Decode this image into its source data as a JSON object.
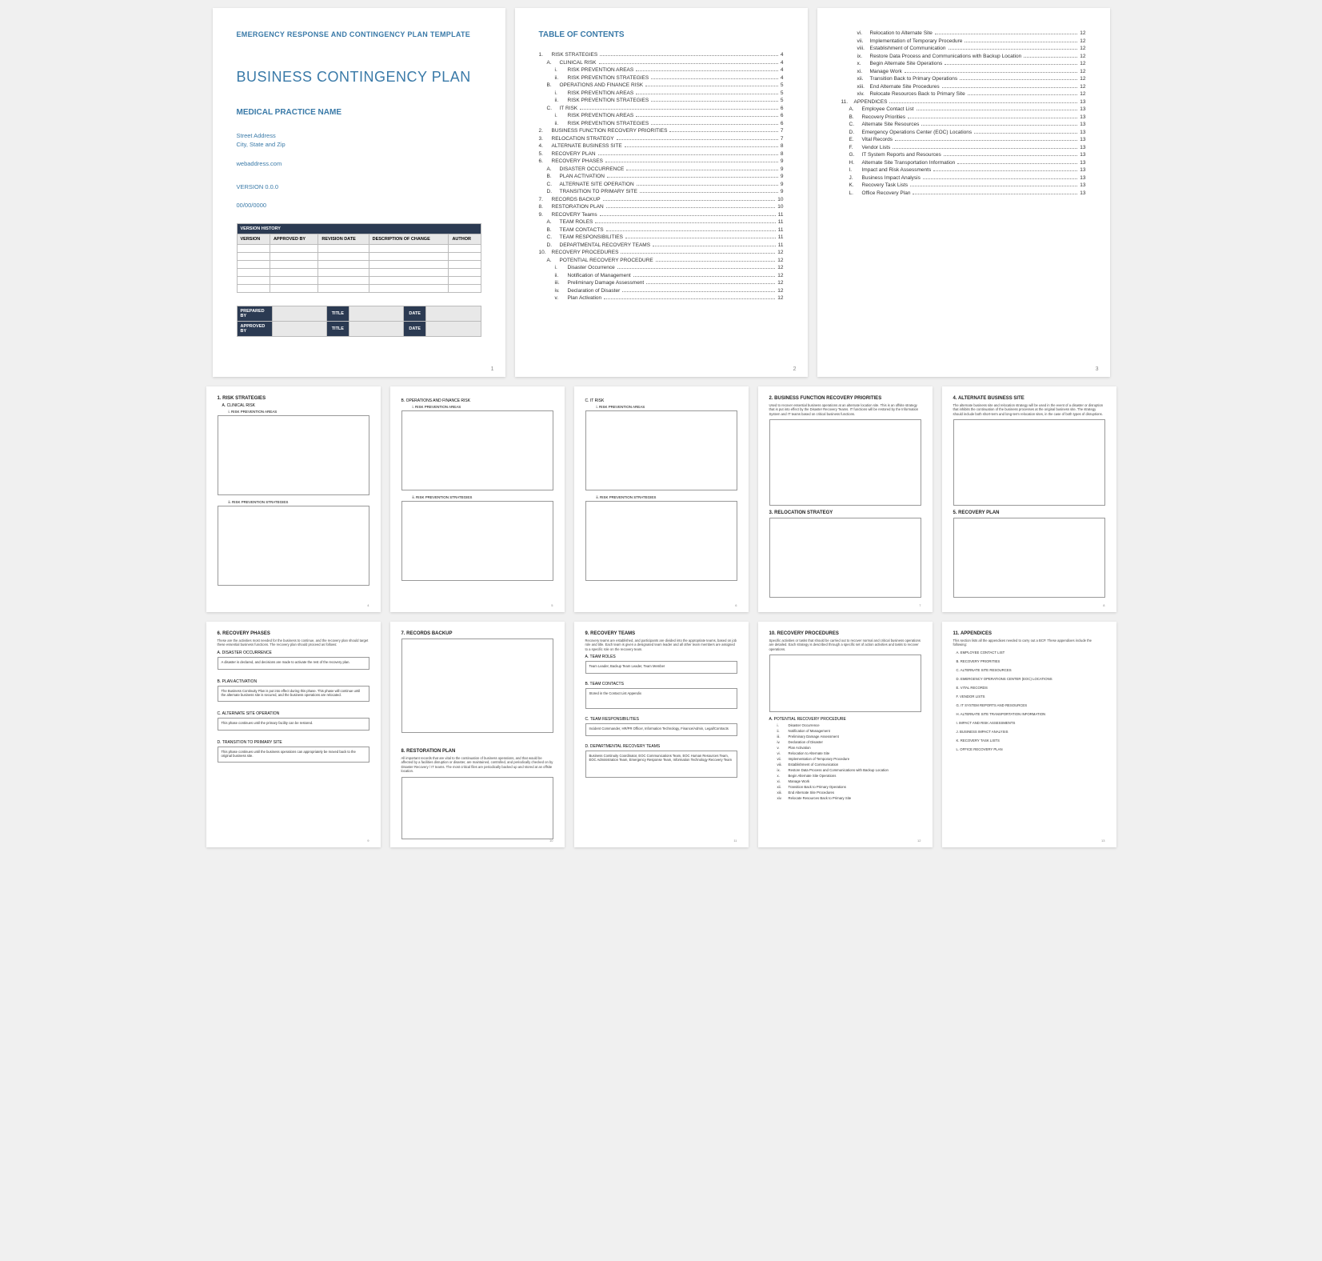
{
  "page1": {
    "supertitle": "EMERGENCY RESPONSE AND CONTINGENCY PLAN TEMPLATE",
    "title": "BUSINESS CONTINGENCY PLAN",
    "subtitle": "MEDICAL PRACTICE NAME",
    "address_line1": "Street Address",
    "address_line2": "City, State and Zip",
    "web": "webaddress.com",
    "version": "VERSION 0.0.0",
    "date": "00/00/0000",
    "vh_title": "VERSION HISTORY",
    "vh_cols": [
      "VERSION",
      "APPROVED BY",
      "REVISION DATE",
      "DESCRIPTION OF CHANGE",
      "AUTHOR"
    ],
    "sig": {
      "prepared": "PREPARED BY",
      "approved": "APPROVED BY",
      "title": "TITLE",
      "date": "DATE"
    }
  },
  "toc_title": "TABLE OF CONTENTS",
  "toc_a": [
    {
      "n": "1.",
      "t": "RISK STRATEGIES",
      "p": "4",
      "i": 0
    },
    {
      "n": "A.",
      "t": "CLINICAL RISK",
      "p": "4",
      "i": 1
    },
    {
      "n": "i.",
      "t": "RISK PREVENTION AREAS",
      "p": "4",
      "i": 2
    },
    {
      "n": "ii.",
      "t": "RISK PREVENTION STRATEGIES",
      "p": "4",
      "i": 2
    },
    {
      "n": "B.",
      "t": "OPERATIONS AND FINANCE RISK",
      "p": "5",
      "i": 1
    },
    {
      "n": "i.",
      "t": "RISK PREVENTION AREAS",
      "p": "5",
      "i": 2
    },
    {
      "n": "ii.",
      "t": "RISK PREVENTION STRATEGIES",
      "p": "5",
      "i": 2
    },
    {
      "n": "C.",
      "t": "IT RISK",
      "p": "6",
      "i": 1
    },
    {
      "n": "i.",
      "t": "RISK PREVENTION AREAS",
      "p": "6",
      "i": 2
    },
    {
      "n": "ii.",
      "t": "RISK PREVENTION STRATEGIES",
      "p": "6",
      "i": 2
    },
    {
      "n": "2.",
      "t": "BUSINESS FUNCTION RECOVERY PRIORITIES",
      "p": "7",
      "i": 0
    },
    {
      "n": "3.",
      "t": "RELOCATION STRATEGY",
      "p": "7",
      "i": 0
    },
    {
      "n": "4.",
      "t": "ALTERNATE BUSINESS SITE",
      "p": "8",
      "i": 0
    },
    {
      "n": "5.",
      "t": "RECOVERY PLAN",
      "p": "8",
      "i": 0
    },
    {
      "n": "6.",
      "t": "RECOVERY PHASES",
      "p": "9",
      "i": 0
    },
    {
      "n": "A.",
      "t": "DISASTER OCCURRENCE",
      "p": "9",
      "i": 1
    },
    {
      "n": "B.",
      "t": "PLAN ACTIVATION",
      "p": "9",
      "i": 1
    },
    {
      "n": "C.",
      "t": "ALTERNATE SITE OPERATION",
      "p": "9",
      "i": 1
    },
    {
      "n": "D.",
      "t": "TRANSITION TO PRIMARY SITE",
      "p": "9",
      "i": 1
    },
    {
      "n": "7.",
      "t": "RECORDS BACKUP",
      "p": "10",
      "i": 0
    },
    {
      "n": "8.",
      "t": "RESTORATION PLAN",
      "p": "10",
      "i": 0
    },
    {
      "n": "9.",
      "t": "RECOVERY Teams",
      "p": "11",
      "i": 0
    },
    {
      "n": "A.",
      "t": "TEAM ROLES",
      "p": "11",
      "i": 1
    },
    {
      "n": "B.",
      "t": "TEAM CONTACTS",
      "p": "11",
      "i": 1
    },
    {
      "n": "C.",
      "t": "TEAM RESPONSIBILITIES",
      "p": "11",
      "i": 1
    },
    {
      "n": "D.",
      "t": "DEPARTMENTAL RECOVERY TEAMS",
      "p": "11",
      "i": 1
    },
    {
      "n": "10.",
      "t": "RECOVERY PROCEDURES",
      "p": "12",
      "i": 0
    },
    {
      "n": "A.",
      "t": "POTENTIAL RECOVERY PROCEDURE",
      "p": "12",
      "i": 1
    },
    {
      "n": "i.",
      "t": "Disaster Occurrence",
      "p": "12",
      "i": 2
    },
    {
      "n": "ii.",
      "t": "Notification of Management",
      "p": "12",
      "i": 2
    },
    {
      "n": "iii.",
      "t": "Preliminary Damage Assessment",
      "p": "12",
      "i": 2
    },
    {
      "n": "iv.",
      "t": "Declaration of Disaster",
      "p": "12",
      "i": 2
    },
    {
      "n": "v.",
      "t": "Plan Activation",
      "p": "12",
      "i": 2
    }
  ],
  "toc_b": [
    {
      "n": "vi.",
      "t": "Relocation to Alternate Site",
      "p": "12",
      "i": 2
    },
    {
      "n": "vii.",
      "t": "Implementation of Temporary Procedure",
      "p": "12",
      "i": 2
    },
    {
      "n": "viii.",
      "t": "Establishment of Communication",
      "p": "12",
      "i": 2
    },
    {
      "n": "ix.",
      "t": "Restore Data Process and Communications with Backup Location",
      "p": "12",
      "i": 2
    },
    {
      "n": "x.",
      "t": "Begin Alternate Site Operations",
      "p": "12",
      "i": 2
    },
    {
      "n": "xi.",
      "t": "Manage Work",
      "p": "12",
      "i": 2
    },
    {
      "n": "xii.",
      "t": "Transition Back to Primary Operations",
      "p": "12",
      "i": 2
    },
    {
      "n": "xiii.",
      "t": "End Alternate Site Procedures",
      "p": "12",
      "i": 2
    },
    {
      "n": "xiv.",
      "t": "Relocate Resources Back to Primary Site",
      "p": "12",
      "i": 2
    },
    {
      "n": "11.",
      "t": "APPENDICES",
      "p": "13",
      "i": 0
    },
    {
      "n": "A.",
      "t": "Employee Contact List",
      "p": "13",
      "i": 1
    },
    {
      "n": "B.",
      "t": "Recovery Priorities",
      "p": "13",
      "i": 1
    },
    {
      "n": "C.",
      "t": "Alternate Site Resources",
      "p": "13",
      "i": 1
    },
    {
      "n": "D.",
      "t": "Emergency Operations Center (EOC) Locations",
      "p": "13",
      "i": 1
    },
    {
      "n": "E.",
      "t": "Vital Records",
      "p": "13",
      "i": 1
    },
    {
      "n": "F.",
      "t": "Vendor Lists",
      "p": "13",
      "i": 1
    },
    {
      "n": "G.",
      "t": "IT System Reports and Resources",
      "p": "13",
      "i": 1
    },
    {
      "n": "H.",
      "t": "Alternate Site Transportation Information",
      "p": "13",
      "i": 1
    },
    {
      "n": "I.",
      "t": "Impact and Risk Assessments",
      "p": "13",
      "i": 1
    },
    {
      "n": "J.",
      "t": "Business Impact Analysis",
      "p": "13",
      "i": 1
    },
    {
      "n": "K.",
      "t": "Recovery Task Lists",
      "p": "13",
      "i": 1
    },
    {
      "n": "L.",
      "t": "Office Recovery Plan",
      "p": "13",
      "i": 1
    }
  ],
  "p4": {
    "h1": "1. RISK STRATEGIES",
    "h2": "A. CLINICAL RISK",
    "h3a": "i. RISK PREVENTION AREAS",
    "h3b": "ii. RISK PREVENTION STRATEGIES"
  },
  "p5": {
    "h2": "B. OPERATIONS AND FINANCE RISK",
    "h3a": "i. RISK PREVENTION AREAS",
    "h3b": "ii. RISK PREVENTION STRATEGIES"
  },
  "p6": {
    "h2": "C. IT RISK",
    "h3a": "i. RISK PREVENTION AREAS",
    "h3b": "ii. RISK PREVENTION STRATEGIES"
  },
  "p7": {
    "h1a": "2. BUSINESS FUNCTION RECOVERY PRIORITIES",
    "txt1": "Used to recover essential business operations at an alternate location site. This is an offsite strategy that is put into effect by the Disaster Recovery Teams. IT functions will be restored by the Information System and IT teams based on critical business functions.",
    "h1b": "3. RELOCATION STRATEGY"
  },
  "p8": {
    "h1a": "4. ALTERNATE BUSINESS SITE",
    "txt1": "The alternate business site and relocation strategy will be used in the event of a disaster or disruption that inhibits the continuation of the business processes at the original business site. The strategy should include both short-term and long-term relocation sites, in the case of both types of disruptions.",
    "h1b": "5. RECOVERY PLAN"
  },
  "p9": {
    "h1": "6. RECOVERY PHASES",
    "intro": "These are the activities most needed for the business to continue, and the recovery plan should target these essential business functions. The recovery plan should proceed as follows:",
    "a_h": "A. DISASTER OCCURRENCE",
    "a_t": "A disaster is declared, and decisions are made to activate the rest of the recovery plan.",
    "b_h": "B. PLAN ACTIVATION",
    "b_t": "The Business Continuity Plan is put into effect during this phase. This phase will continue until the alternate business site is secured, and the business operations are relocated.",
    "c_h": "C. ALTERNATE SITE OPERATION",
    "c_t": "This phase continues until the primary facility can be restored.",
    "d_h": "D. TRANSITION TO PRIMARY SITE",
    "d_t": "This phase continues until the business operations can appropriately be moved back to the original business site."
  },
  "p10": {
    "h1a": "7. RECORDS BACKUP",
    "h1b": "8. RESTORATION PLAN",
    "txt": "All important records that are vital to the continuation of business operations, and that would be affected by a facilities disruption or disaster, are maintained, controlled, and periodically checked on by Disaster Recovery / IT teams. The most critical files are periodically backed up and stored at an offsite location."
  },
  "p11": {
    "h1": "9. RECOVERY TEAMS",
    "intro": "Recovery teams are established, and participants are divided into the appropriate teams, based on job role and title. Each team is given a designated team leader and all other team members are assigned to a specific role on the recovery team.",
    "a_h": "A. TEAM ROLES",
    "a_t": "Team Leader, Backup Team Leader, Team Member",
    "b_h": "B. TEAM CONTACTS",
    "b_t": "Stored in the Contact List Appendix",
    "c_h": "C. TEAM RESPONSIBILITIES",
    "c_t": "Incident Commander, HR/PR Officer, Information Technology, Finance/Admin, Legal/Contracts",
    "d_h": "D. DEPARTMENTAL RECOVERY TEAMS",
    "d_t": "Business Continuity Coordinator, EOC Communications Team, EOC Human Resources Team, EOC Administration Team, Emergency Response Team, Information Technology Recovery Team"
  },
  "p12": {
    "h1": "10. RECOVERY PROCEDURES",
    "intro": "Specific activities or tasks that should be carried out to recover normal and critical business operations are detailed. Each strategy is described through a specific set of action activities and tasks to recover operations.",
    "sub": "A. POTENTIAL RECOVERY PROCEDURE",
    "items": [
      {
        "n": "i.",
        "t": "Disaster Occurrence"
      },
      {
        "n": "ii.",
        "t": "Notification of Management"
      },
      {
        "n": "iii.",
        "t": "Preliminary Damage Assessment"
      },
      {
        "n": "iv.",
        "t": "Declaration of Disaster"
      },
      {
        "n": "v.",
        "t": "Plan Activation"
      },
      {
        "n": "vi.",
        "t": "Relocation to Alternate Site"
      },
      {
        "n": "vii.",
        "t": "Implementation of Temporary Procedure"
      },
      {
        "n": "viii.",
        "t": "Establishment of Communication"
      },
      {
        "n": "ix.",
        "t": "Restore Data Process and Communications with Backup Location"
      },
      {
        "n": "x.",
        "t": "Begin Alternate Site Operations"
      },
      {
        "n": "xi.",
        "t": "Manage Work"
      },
      {
        "n": "xii.",
        "t": "Transition Back to Primary Operations"
      },
      {
        "n": "xiii.",
        "t": "End Alternate Site Procedures"
      },
      {
        "n": "xiv.",
        "t": "Relocate Resources Back to Primary Site"
      }
    ]
  },
  "p13": {
    "h1": "11. APPENDICES",
    "intro": "This section lists all the appendixes needed to carry out a BCP. These appendixes include the following:",
    "items": [
      "A. EMPLOYEE CONTACT LIST",
      "B. RECOVERY PRIORITIES",
      "C. ALTERNATE SITE RESOURCES",
      "D. EMERGENCY OPERATIONS CENTER (EOC) LOCATIONS",
      "E. VITAL RECORDS",
      "F. VENDOR LISTS",
      "G. IT SYSTEM REPORTS AND RESOURCES",
      "H. ALTERNATE SITE TRANSPORTATION INFORMATION",
      "I. IMPACT AND RISK ASSESSMENTS",
      "J. BUSINESS IMPACT ANALYSIS",
      "K. RECOVERY TASK LISTS",
      "L. OFFICE RECOVERY PLAN"
    ]
  },
  "pagenums": [
    "1",
    "2",
    "3",
    "4",
    "5",
    "6",
    "7",
    "8",
    "9",
    "10",
    "11",
    "12",
    "13"
  ]
}
